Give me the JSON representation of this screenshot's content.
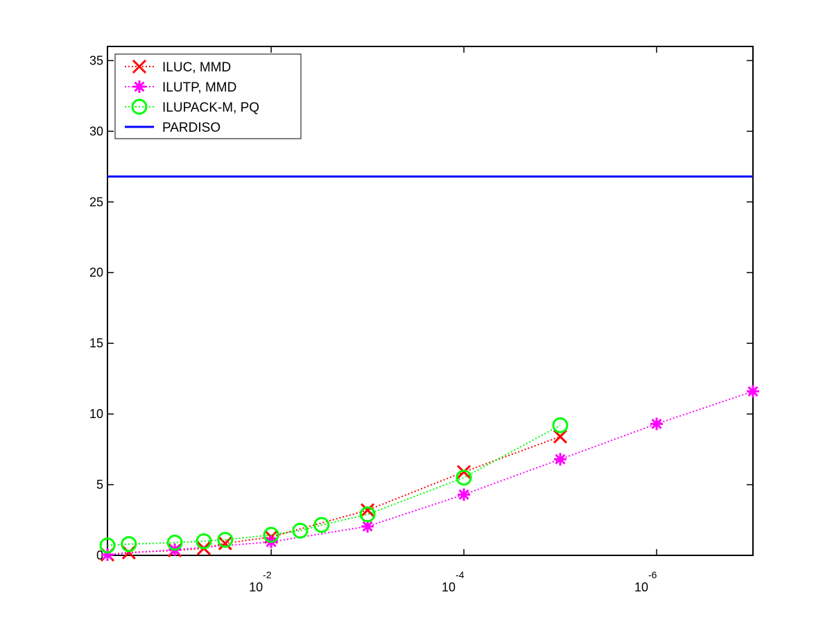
{
  "chart_data": {
    "type": "line",
    "title": "",
    "xlabel": "",
    "ylabel": "",
    "x_scale": "log-reversed",
    "xlim": [
      0.5,
      1e-07
    ],
    "ylim": [
      0,
      36
    ],
    "yticks": [
      0,
      5,
      10,
      15,
      20,
      25,
      30,
      35
    ],
    "xticks": [
      {
        "value": 0.01,
        "base": "10",
        "exponent": "-2"
      },
      {
        "value": 0.0001,
        "base": "10",
        "exponent": "-4"
      },
      {
        "value": 1e-06,
        "base": "10",
        "exponent": "-6"
      }
    ],
    "grid": false,
    "legend_position": "top-left",
    "series": [
      {
        "name": "ILUC, MMD",
        "color": "#ff0000",
        "marker": "x",
        "line_style": "dotted",
        "x": [
          0.5,
          0.3,
          0.1,
          0.05,
          0.03,
          0.01,
          0.001,
          0.0001,
          1e-05
        ],
        "y": [
          0.05,
          0.2,
          0.35,
          0.5,
          0.85,
          1.3,
          3.2,
          5.9,
          8.4
        ]
      },
      {
        "name": "ILUTP, MMD",
        "color": "#ff00ff",
        "marker": "asterisk",
        "line_style": "dotted",
        "x": [
          0.5,
          0.1,
          0.01,
          0.001,
          0.0001,
          1e-05,
          1e-06,
          1e-07
        ],
        "y": [
          0.05,
          0.4,
          0.95,
          2.05,
          4.3,
          6.8,
          9.3,
          11.6
        ]
      },
      {
        "name": "ILUPACK-M, PQ",
        "color": "#00ff00",
        "marker": "circle",
        "line_style": "dotted",
        "x": [
          0.5,
          0.3,
          0.1,
          0.05,
          0.03,
          0.01,
          0.005,
          0.003,
          0.001,
          0.0001,
          1e-05
        ],
        "y": [
          0.7,
          0.8,
          0.9,
          1.0,
          1.1,
          1.45,
          1.75,
          2.15,
          2.9,
          5.5,
          9.2
        ]
      },
      {
        "name": "PARDISO",
        "color": "#0000ff",
        "marker": "none",
        "line_style": "solid",
        "x": [
          0.5,
          1e-07
        ],
        "y": [
          26.8,
          26.8
        ]
      }
    ]
  }
}
